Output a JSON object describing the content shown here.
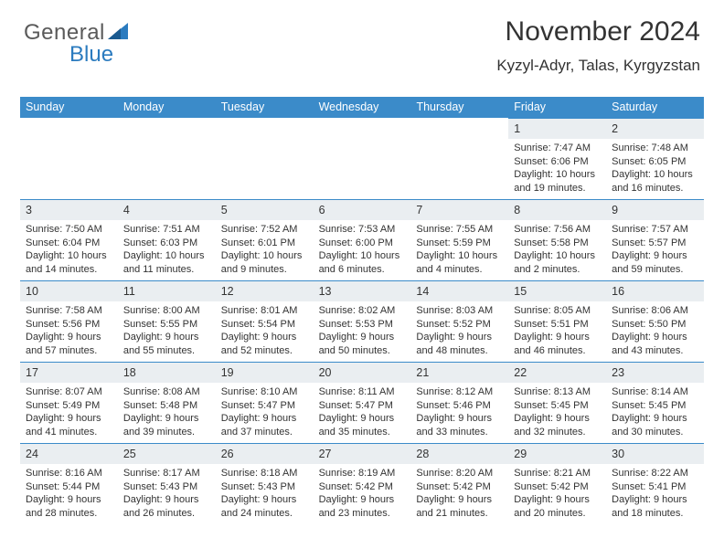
{
  "logo": {
    "text_gray": "General",
    "text_blue": "Blue",
    "accent_color": "#2b7bbf"
  },
  "title": "November 2024",
  "subtitle": "Kyzyl-Adyr, Talas, Kyrgyzstan",
  "colors": {
    "header_bg": "#3b8bc9",
    "daynum_bg": "#eaeef1",
    "border": "#3b8bc9",
    "text": "#333333",
    "white": "#ffffff"
  },
  "daynames": [
    "Sunday",
    "Monday",
    "Tuesday",
    "Wednesday",
    "Thursday",
    "Friday",
    "Saturday"
  ],
  "cells": [
    {
      "day": "",
      "sunrise": "",
      "sunset": "",
      "daylight": ""
    },
    {
      "day": "",
      "sunrise": "",
      "sunset": "",
      "daylight": ""
    },
    {
      "day": "",
      "sunrise": "",
      "sunset": "",
      "daylight": ""
    },
    {
      "day": "",
      "sunrise": "",
      "sunset": "",
      "daylight": ""
    },
    {
      "day": "",
      "sunrise": "",
      "sunset": "",
      "daylight": ""
    },
    {
      "day": "1",
      "sunrise": "Sunrise: 7:47 AM",
      "sunset": "Sunset: 6:06 PM",
      "daylight": "Daylight: 10 hours and 19 minutes."
    },
    {
      "day": "2",
      "sunrise": "Sunrise: 7:48 AM",
      "sunset": "Sunset: 6:05 PM",
      "daylight": "Daylight: 10 hours and 16 minutes."
    },
    {
      "day": "3",
      "sunrise": "Sunrise: 7:50 AM",
      "sunset": "Sunset: 6:04 PM",
      "daylight": "Daylight: 10 hours and 14 minutes."
    },
    {
      "day": "4",
      "sunrise": "Sunrise: 7:51 AM",
      "sunset": "Sunset: 6:03 PM",
      "daylight": "Daylight: 10 hours and 11 minutes."
    },
    {
      "day": "5",
      "sunrise": "Sunrise: 7:52 AM",
      "sunset": "Sunset: 6:01 PM",
      "daylight": "Daylight: 10 hours and 9 minutes."
    },
    {
      "day": "6",
      "sunrise": "Sunrise: 7:53 AM",
      "sunset": "Sunset: 6:00 PM",
      "daylight": "Daylight: 10 hours and 6 minutes."
    },
    {
      "day": "7",
      "sunrise": "Sunrise: 7:55 AM",
      "sunset": "Sunset: 5:59 PM",
      "daylight": "Daylight: 10 hours and 4 minutes."
    },
    {
      "day": "8",
      "sunrise": "Sunrise: 7:56 AM",
      "sunset": "Sunset: 5:58 PM",
      "daylight": "Daylight: 10 hours and 2 minutes."
    },
    {
      "day": "9",
      "sunrise": "Sunrise: 7:57 AM",
      "sunset": "Sunset: 5:57 PM",
      "daylight": "Daylight: 9 hours and 59 minutes."
    },
    {
      "day": "10",
      "sunrise": "Sunrise: 7:58 AM",
      "sunset": "Sunset: 5:56 PM",
      "daylight": "Daylight: 9 hours and 57 minutes."
    },
    {
      "day": "11",
      "sunrise": "Sunrise: 8:00 AM",
      "sunset": "Sunset: 5:55 PM",
      "daylight": "Daylight: 9 hours and 55 minutes."
    },
    {
      "day": "12",
      "sunrise": "Sunrise: 8:01 AM",
      "sunset": "Sunset: 5:54 PM",
      "daylight": "Daylight: 9 hours and 52 minutes."
    },
    {
      "day": "13",
      "sunrise": "Sunrise: 8:02 AM",
      "sunset": "Sunset: 5:53 PM",
      "daylight": "Daylight: 9 hours and 50 minutes."
    },
    {
      "day": "14",
      "sunrise": "Sunrise: 8:03 AM",
      "sunset": "Sunset: 5:52 PM",
      "daylight": "Daylight: 9 hours and 48 minutes."
    },
    {
      "day": "15",
      "sunrise": "Sunrise: 8:05 AM",
      "sunset": "Sunset: 5:51 PM",
      "daylight": "Daylight: 9 hours and 46 minutes."
    },
    {
      "day": "16",
      "sunrise": "Sunrise: 8:06 AM",
      "sunset": "Sunset: 5:50 PM",
      "daylight": "Daylight: 9 hours and 43 minutes."
    },
    {
      "day": "17",
      "sunrise": "Sunrise: 8:07 AM",
      "sunset": "Sunset: 5:49 PM",
      "daylight": "Daylight: 9 hours and 41 minutes."
    },
    {
      "day": "18",
      "sunrise": "Sunrise: 8:08 AM",
      "sunset": "Sunset: 5:48 PM",
      "daylight": "Daylight: 9 hours and 39 minutes."
    },
    {
      "day": "19",
      "sunrise": "Sunrise: 8:10 AM",
      "sunset": "Sunset: 5:47 PM",
      "daylight": "Daylight: 9 hours and 37 minutes."
    },
    {
      "day": "20",
      "sunrise": "Sunrise: 8:11 AM",
      "sunset": "Sunset: 5:47 PM",
      "daylight": "Daylight: 9 hours and 35 minutes."
    },
    {
      "day": "21",
      "sunrise": "Sunrise: 8:12 AM",
      "sunset": "Sunset: 5:46 PM",
      "daylight": "Daylight: 9 hours and 33 minutes."
    },
    {
      "day": "22",
      "sunrise": "Sunrise: 8:13 AM",
      "sunset": "Sunset: 5:45 PM",
      "daylight": "Daylight: 9 hours and 32 minutes."
    },
    {
      "day": "23",
      "sunrise": "Sunrise: 8:14 AM",
      "sunset": "Sunset: 5:45 PM",
      "daylight": "Daylight: 9 hours and 30 minutes."
    },
    {
      "day": "24",
      "sunrise": "Sunrise: 8:16 AM",
      "sunset": "Sunset: 5:44 PM",
      "daylight": "Daylight: 9 hours and 28 minutes."
    },
    {
      "day": "25",
      "sunrise": "Sunrise: 8:17 AM",
      "sunset": "Sunset: 5:43 PM",
      "daylight": "Daylight: 9 hours and 26 minutes."
    },
    {
      "day": "26",
      "sunrise": "Sunrise: 8:18 AM",
      "sunset": "Sunset: 5:43 PM",
      "daylight": "Daylight: 9 hours and 24 minutes."
    },
    {
      "day": "27",
      "sunrise": "Sunrise: 8:19 AM",
      "sunset": "Sunset: 5:42 PM",
      "daylight": "Daylight: 9 hours and 23 minutes."
    },
    {
      "day": "28",
      "sunrise": "Sunrise: 8:20 AM",
      "sunset": "Sunset: 5:42 PM",
      "daylight": "Daylight: 9 hours and 21 minutes."
    },
    {
      "day": "29",
      "sunrise": "Sunrise: 8:21 AM",
      "sunset": "Sunset: 5:42 PM",
      "daylight": "Daylight: 9 hours and 20 minutes."
    },
    {
      "day": "30",
      "sunrise": "Sunrise: 8:22 AM",
      "sunset": "Sunset: 5:41 PM",
      "daylight": "Daylight: 9 hours and 18 minutes."
    }
  ]
}
